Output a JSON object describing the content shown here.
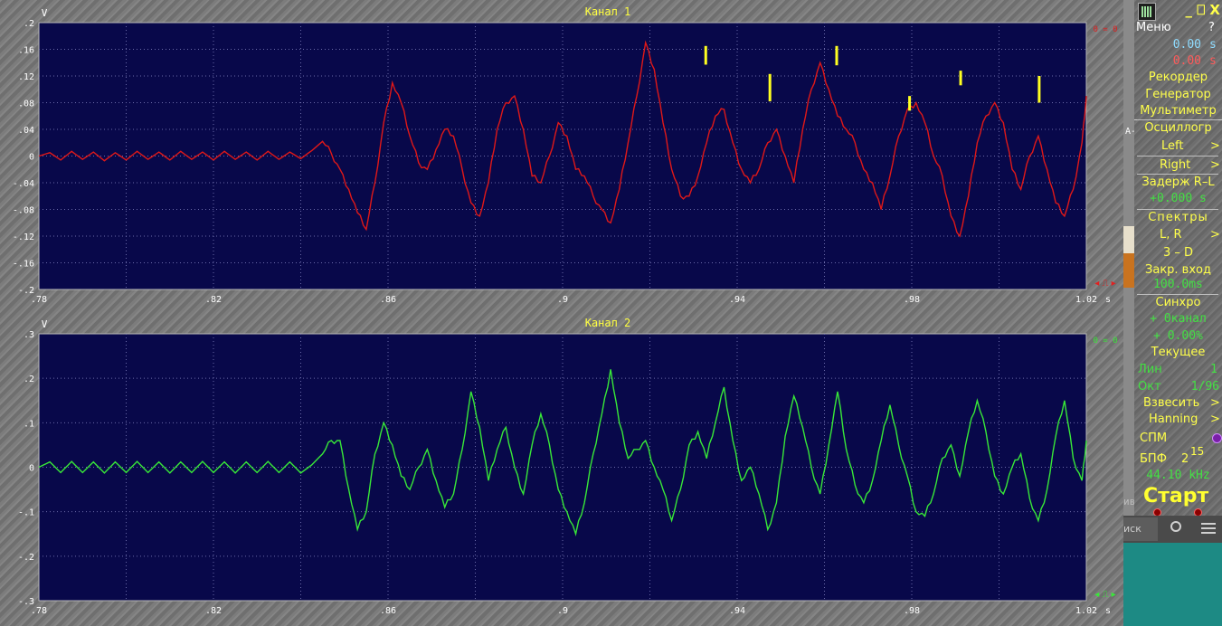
{
  "channels": [
    {
      "title": "Канал 1",
      "unit": "V",
      "x_unit": "s",
      "y_ticks": [
        ".2",
        ".16",
        ".12",
        ".08",
        ".04",
        "0",
        "-.04",
        "-.08",
        "-.12",
        "-.16",
        "-.2"
      ],
      "x_ticks": [
        ".78",
        ".82",
        ".86",
        ".9",
        ".94",
        ".98",
        "1.02"
      ],
      "marker_text": "0 = 0",
      "nav_text": "◂ ⎍ ▸",
      "trace_color": "#e01818",
      "marker_color": "#e02020"
    },
    {
      "title": "Канал 2",
      "unit": "V",
      "x_unit": "s",
      "y_ticks": [
        ".3",
        ".2",
        ".1",
        "0",
        "-.1",
        "-.2",
        "-.3"
      ],
      "x_ticks": [
        ".78",
        ".82",
        ".86",
        ".9",
        ".94",
        ".98",
        "1.02"
      ],
      "marker_text": "0 = 0",
      "nav_text": "◂ ⎍ ▸",
      "trace_color": "#38e838",
      "marker_color": "#38e838"
    }
  ],
  "chart_data": [
    {
      "type": "line",
      "title": "Канал 1",
      "xlabel": "s",
      "ylabel": "V",
      "xlim": [
        0.78,
        1.02
      ],
      "ylim": [
        -0.2,
        0.2
      ],
      "grid": true,
      "series": [
        {
          "name": "Канал 1",
          "x": [
            0.78,
            0.7825,
            0.785,
            0.7875,
            0.79,
            0.7925,
            0.795,
            0.7975,
            0.8,
            0.8025,
            0.805,
            0.8075,
            0.81,
            0.8125,
            0.815,
            0.8175,
            0.82,
            0.8225,
            0.825,
            0.8275,
            0.83,
            0.8325,
            0.835,
            0.8375,
            0.84,
            0.8425,
            0.845,
            0.847,
            0.849,
            0.851,
            0.853,
            0.855,
            0.857,
            0.859,
            0.861,
            0.863,
            0.865,
            0.867,
            0.869,
            0.871,
            0.873,
            0.875,
            0.877,
            0.879,
            0.881,
            0.883,
            0.885,
            0.887,
            0.889,
            0.891,
            0.893,
            0.895,
            0.897,
            0.899,
            0.901,
            0.903,
            0.905,
            0.907,
            0.909,
            0.911,
            0.913,
            0.915,
            0.917,
            0.919,
            0.921,
            0.923,
            0.925,
            0.927,
            0.929,
            0.931,
            0.933,
            0.935,
            0.937,
            0.939,
            0.941,
            0.943,
            0.945,
            0.947,
            0.949,
            0.951,
            0.953,
            0.955,
            0.957,
            0.959,
            0.961,
            0.963,
            0.965,
            0.967,
            0.969,
            0.971,
            0.973,
            0.975,
            0.977,
            0.979,
            0.981,
            0.983,
            0.985,
            0.987,
            0.989,
            0.991,
            0.993,
            0.995,
            0.997,
            0.999,
            1.001,
            1.003,
            1.005,
            1.007,
            1.009,
            1.011,
            1.013,
            1.015,
            1.017,
            1.019,
            1.02
          ],
          "y": [
            0.0,
            0.005,
            -0.006,
            0.007,
            -0.005,
            0.006,
            -0.007,
            0.005,
            -0.006,
            0.007,
            -0.005,
            0.006,
            -0.006,
            0.007,
            -0.005,
            0.006,
            -0.006,
            0.007,
            -0.005,
            0.006,
            -0.006,
            0.007,
            -0.005,
            0.006,
            -0.004,
            0.008,
            0.022,
            0.004,
            -0.02,
            -0.05,
            -0.085,
            -0.11,
            -0.04,
            0.05,
            0.11,
            0.08,
            0.03,
            -0.01,
            -0.02,
            0.01,
            0.04,
            0.03,
            -0.02,
            -0.07,
            -0.09,
            -0.04,
            0.04,
            0.08,
            0.09,
            0.04,
            -0.03,
            -0.04,
            0.0,
            0.05,
            0.03,
            -0.02,
            -0.03,
            -0.06,
            -0.08,
            -0.1,
            -0.05,
            0.02,
            0.09,
            0.17,
            0.13,
            0.05,
            -0.02,
            -0.06,
            -0.06,
            -0.03,
            0.02,
            0.06,
            0.07,
            0.02,
            -0.02,
            -0.04,
            -0.02,
            0.02,
            0.04,
            0.0,
            -0.04,
            0.04,
            0.1,
            0.14,
            0.1,
            0.06,
            0.04,
            0.02,
            -0.02,
            -0.04,
            -0.08,
            -0.03,
            0.03,
            0.07,
            0.08,
            0.05,
            0.0,
            -0.03,
            -0.09,
            -0.12,
            -0.06,
            0.02,
            0.06,
            0.08,
            0.05,
            -0.02,
            -0.05,
            0.0,
            0.03,
            -0.02,
            -0.07,
            -0.09,
            -0.05,
            0.02,
            0.09
          ],
          "color": "#e01818"
        }
      ]
    },
    {
      "type": "line",
      "title": "Канал 2",
      "xlabel": "s",
      "ylabel": "V",
      "xlim": [
        0.78,
        1.02
      ],
      "ylim": [
        -0.3,
        0.3
      ],
      "grid": true,
      "series": [
        {
          "name": "Канал 2",
          "x": [
            0.78,
            0.7825,
            0.785,
            0.7875,
            0.79,
            0.7925,
            0.795,
            0.7975,
            0.8,
            0.8025,
            0.805,
            0.8075,
            0.81,
            0.8125,
            0.815,
            0.8175,
            0.82,
            0.8225,
            0.825,
            0.8275,
            0.83,
            0.8325,
            0.835,
            0.8375,
            0.84,
            0.8425,
            0.845,
            0.847,
            0.849,
            0.851,
            0.853,
            0.855,
            0.857,
            0.859,
            0.861,
            0.863,
            0.865,
            0.867,
            0.869,
            0.871,
            0.873,
            0.875,
            0.877,
            0.879,
            0.881,
            0.883,
            0.885,
            0.887,
            0.889,
            0.891,
            0.893,
            0.895,
            0.897,
            0.899,
            0.901,
            0.903,
            0.905,
            0.907,
            0.909,
            0.911,
            0.913,
            0.915,
            0.917,
            0.919,
            0.921,
            0.923,
            0.925,
            0.927,
            0.929,
            0.931,
            0.933,
            0.935,
            0.937,
            0.939,
            0.941,
            0.943,
            0.945,
            0.947,
            0.949,
            0.951,
            0.953,
            0.955,
            0.957,
            0.959,
            0.961,
            0.963,
            0.965,
            0.967,
            0.969,
            0.971,
            0.973,
            0.975,
            0.977,
            0.979,
            0.981,
            0.983,
            0.985,
            0.987,
            0.989,
            0.991,
            0.993,
            0.995,
            0.997,
            0.999,
            1.001,
            1.003,
            1.005,
            1.007,
            1.009,
            1.011,
            1.013,
            1.015,
            1.017,
            1.019,
            1.02
          ],
          "y": [
            0.0,
            0.012,
            -0.012,
            0.013,
            -0.012,
            0.012,
            -0.013,
            0.012,
            -0.012,
            0.013,
            -0.012,
            0.012,
            -0.013,
            0.012,
            -0.012,
            0.013,
            -0.012,
            0.012,
            -0.013,
            0.012,
            -0.012,
            0.013,
            -0.012,
            0.012,
            -0.013,
            0.005,
            0.03,
            0.06,
            0.06,
            -0.05,
            -0.14,
            -0.1,
            0.03,
            0.1,
            0.05,
            -0.02,
            -0.05,
            0.0,
            0.04,
            -0.03,
            -0.09,
            -0.06,
            0.04,
            0.17,
            0.09,
            -0.03,
            0.04,
            0.09,
            0.0,
            -0.06,
            0.05,
            0.12,
            0.05,
            -0.05,
            -0.1,
            -0.15,
            -0.08,
            0.03,
            0.12,
            0.22,
            0.1,
            0.02,
            0.04,
            0.06,
            0.0,
            -0.05,
            -0.12,
            -0.05,
            0.05,
            0.08,
            0.02,
            0.1,
            0.18,
            0.06,
            -0.03,
            0.0,
            -0.06,
            -0.14,
            -0.08,
            0.07,
            0.16,
            0.09,
            0.0,
            -0.06,
            0.05,
            0.17,
            0.04,
            -0.04,
            -0.08,
            -0.03,
            0.06,
            0.14,
            0.05,
            -0.02,
            -0.1,
            -0.11,
            -0.06,
            0.02,
            0.05,
            -0.02,
            0.08,
            0.15,
            0.08,
            -0.02,
            -0.06,
            0.0,
            0.03,
            -0.07,
            -0.12,
            -0.05,
            0.07,
            0.15,
            0.02,
            -0.03,
            0.06
          ],
          "color": "#38e838"
        }
      ]
    }
  ],
  "peak_markers": [
    {
      "x": 0.9328,
      "y_top": 0.165,
      "y_bottom": 0.137
    },
    {
      "x": 0.9475,
      "y_top": 0.123,
      "y_bottom": 0.082
    },
    {
      "x": 0.9628,
      "y_top": 0.165,
      "y_bottom": 0.136
    },
    {
      "x": 0.9795,
      "y_top": 0.09,
      "y_bottom": 0.068
    },
    {
      "x": 0.9912,
      "y_top": 0.128,
      "y_bottom": 0.106
    },
    {
      "x": 1.0092,
      "y_top": 0.12,
      "y_bottom": 0.08
    }
  ],
  "panel": {
    "title_buttons": "_ ⎕ X",
    "menu": "Меню",
    "help": "?",
    "time1": "0.00",
    "time1_unit": "s",
    "time2": "0.00",
    "time2_unit": "s",
    "recorder": "Рекордер",
    "generator": "Генератор",
    "multimeter": "Мультиметр",
    "oscillograph": "Осциллогр",
    "left": "Left",
    "right": "Right",
    "arrow": ">",
    "delay": "Задерж R–L",
    "delay_value": "+0.000  s",
    "spectra": "Спектры",
    "lr": "L, R",
    "three_d": "3 – D",
    "closed_input": "Закр. вход",
    "closed_input_value": "100.0ms",
    "sync": "Синхро",
    "sync_channel": "+ 0канал",
    "sync_percent": "+ 0.00%",
    "current": "Текущее",
    "lin": "Лин",
    "lin_value": "1",
    "oct": "Окт",
    "oct_value": "1/96",
    "weigh": "Взвесить",
    "hanning": "Hanning",
    "spm": "СПМ",
    "fft": "БПФ",
    "fft_base": "2",
    "fft_exp": "15",
    "sample_rate": "44.10 kHz",
    "start": "Старт"
  },
  "background": {
    "search_text": "иск",
    "side_text_1": "ив",
    "side_text_2": "A-"
  }
}
